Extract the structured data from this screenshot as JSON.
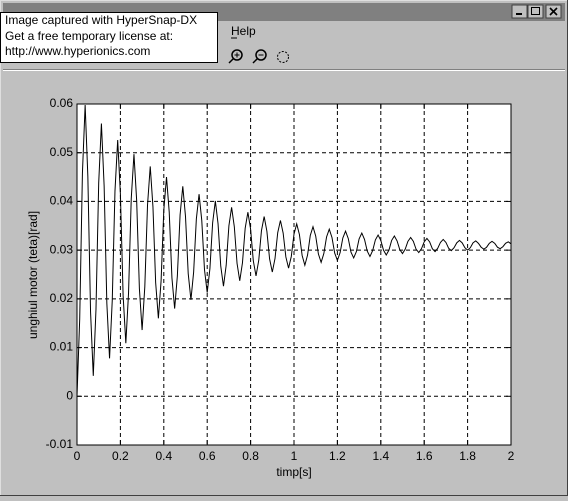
{
  "window": {
    "menu": [
      "Help"
    ]
  },
  "overlay": {
    "lines": [
      "Image captured with HyperSnap-DX",
      "Get a free temporary license at:",
      "http://www.hyperionics.com"
    ]
  },
  "chart_data": {
    "type": "line",
    "x_label": "timp[s]",
    "y_label": "unghiul motor (teta)[rad]",
    "x": [
      0,
      0.0125,
      0.025,
      0.0375,
      0.05,
      0.0625,
      0.075,
      0.0875,
      0.1,
      0.1125,
      0.125,
      0.1375,
      0.15,
      0.1625,
      0.175,
      0.1875,
      0.2,
      0.2125,
      0.225,
      0.2375,
      0.25,
      0.2625,
      0.275,
      0.2875,
      0.3,
      0.3125,
      0.325,
      0.3375,
      0.35,
      0.3625,
      0.375,
      0.3875,
      0.4,
      0.4125,
      0.425,
      0.4375,
      0.45,
      0.4625,
      0.475,
      0.4875,
      0.5,
      0.5125,
      0.525,
      0.5375,
      0.55,
      0.5625,
      0.575,
      0.5875,
      0.6,
      0.6125,
      0.625,
      0.6375,
      0.65,
      0.6625,
      0.675,
      0.6875,
      0.7,
      0.7125,
      0.725,
      0.7375,
      0.75,
      0.7625,
      0.775,
      0.7875,
      0.8,
      0.8125,
      0.825,
      0.8375,
      0.85,
      0.8625,
      0.875,
      0.8875,
      0.9,
      0.9125,
      0.925,
      0.9375,
      0.95,
      0.9625,
      0.975,
      0.9875,
      1,
      1.0125,
      1.025,
      1.0375,
      1.05,
      1.0625,
      1.075,
      1.0875,
      1.1,
      1.1125,
      1.125,
      1.1375,
      1.15,
      1.1625,
      1.175,
      1.1875,
      1.2,
      1.2125,
      1.225,
      1.2375,
      1.25,
      1.2625,
      1.275,
      1.2875,
      1.3,
      1.3125,
      1.325,
      1.3375,
      1.35,
      1.3625,
      1.375,
      1.3875,
      1.4,
      1.4125,
      1.425,
      1.4375,
      1.45,
      1.4625,
      1.475,
      1.4875,
      1.5,
      1.5125,
      1.525,
      1.5375,
      1.55,
      1.5625,
      1.575,
      1.5875,
      1.6,
      1.6125,
      1.625,
      1.6375,
      1.65,
      1.6625,
      1.675,
      1.6875,
      1.7,
      1.7125,
      1.725,
      1.7375,
      1.75,
      1.7625,
      1.775,
      1.7875,
      1.8,
      1.8125,
      1.825,
      1.8375,
      1.85,
      1.8625,
      1.875,
      1.8875,
      1.9,
      1.9125,
      1.925,
      1.9375,
      1.95,
      1.9625,
      1.975,
      1.9875,
      2
    ],
    "values": [
      0,
      0.0159,
      0.0458,
      0.0598,
      0.0451,
      0.0173,
      0.0042,
      0.0179,
      0.0438,
      0.056,
      0.0432,
      0.0191,
      0.0078,
      0.0197,
      0.0421,
      0.0526,
      0.0415,
      0.0207,
      0.0109,
      0.0212,
      0.0406,
      0.0497,
      0.0401,
      0.0221,
      0.0136,
      0.0225,
      0.0393,
      0.0472,
      0.0389,
      0.0233,
      0.016,
      0.0237,
      0.0382,
      0.045,
      0.0378,
      0.0243,
      0.018,
      0.0247,
      0.0372,
      0.0431,
      0.0369,
      0.0252,
      0.0198,
      0.0255,
      0.0364,
      0.0415,
      0.0361,
      0.026,
      0.0213,
      0.0262,
      0.0356,
      0.0401,
      0.0354,
      0.0267,
      0.0226,
      0.0269,
      0.035,
      0.0388,
      0.0348,
      0.0273,
      0.0237,
      0.0274,
      0.0345,
      0.0378,
      0.0343,
      0.0278,
      0.0247,
      0.0279,
      0.034,
      0.0369,
      0.0339,
      0.0282,
      0.0255,
      0.0283,
      0.0336,
      0.0361,
      0.0335,
      0.0286,
      0.0263,
      0.0287,
      0.0333,
      0.0354,
      0.0332,
      0.0289,
      0.0269,
      0.029,
      0.033,
      0.0348,
      0.0329,
      0.0292,
      0.0275,
      0.0293,
      0.0327,
      0.0343,
      0.0326,
      0.0294,
      0.0279,
      0.0295,
      0.0325,
      0.0339,
      0.0324,
      0.0296,
      0.0284,
      0.0297,
      0.0323,
      0.0335,
      0.0322,
      0.0298,
      0.0287,
      0.0299,
      0.0321,
      0.0331,
      0.032,
      0.03,
      0.029,
      0.03,
      0.032,
      0.0329,
      0.0319,
      0.0301,
      0.0293,
      0.0302,
      0.0318,
      0.0326,
      0.0318,
      0.0302,
      0.0295,
      0.0303,
      0.0317,
      0.0324,
      0.0317,
      0.0303,
      0.0297,
      0.0304,
      0.0316,
      0.0322,
      0.0316,
      0.0304,
      0.0299,
      0.0305,
      0.0315,
      0.032,
      0.0315,
      0.0305,
      0.03,
      0.0305,
      0.0315,
      0.0319,
      0.0314,
      0.0306,
      0.0302,
      0.0306,
      0.0314,
      0.0318,
      0.0314,
      0.0306,
      0.0303,
      0.0307,
      0.0314,
      0.0317,
      0.0313
    ],
    "color": "#000000",
    "xlim": [
      0,
      2
    ],
    "xticks": [
      0,
      0.2,
      0.4,
      0.6,
      0.8,
      1,
      1.2,
      1.4,
      1.6,
      1.8,
      2
    ],
    "ylim": [
      -0.01,
      0.06
    ],
    "yticks": [
      -0.01,
      0,
      0.01,
      0.02,
      0.03,
      0.04,
      0.05,
      0.06
    ],
    "grid": true
  }
}
